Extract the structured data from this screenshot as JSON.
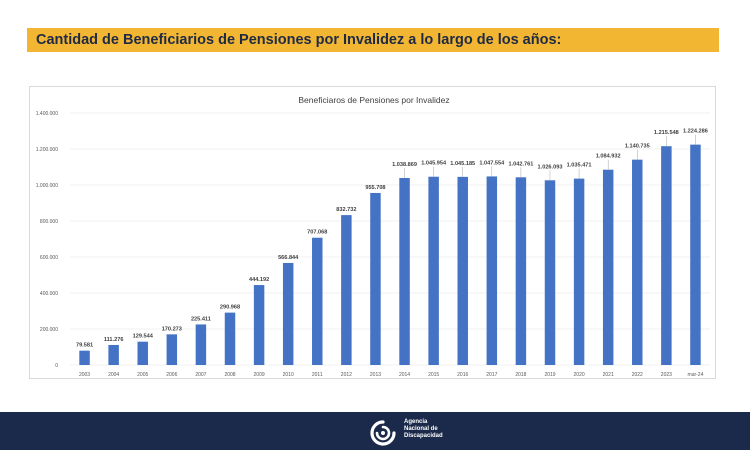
{
  "header": {
    "title": "Cantidad de Beneficiarios de Pensiones por Invalidez a lo largo de los años:"
  },
  "chart_data": {
    "type": "bar",
    "title": "Beneficiaros de Pensiones por Invalidez",
    "xlabel": "",
    "ylabel": "",
    "ylim": [
      0,
      1400000
    ],
    "y_ticks": [
      "0",
      "200.000",
      "400.000",
      "600.000",
      "800.000",
      "1.000.000",
      "1.200.000",
      "1.400.000"
    ],
    "y_tick_values": [
      0,
      200000,
      400000,
      600000,
      800000,
      1000000,
      1200000,
      1400000
    ],
    "categories": [
      "2003",
      "2004",
      "2005",
      "2006",
      "2007",
      "2008",
      "2009",
      "2010",
      "2011",
      "2012",
      "2013",
      "2014",
      "2015",
      "2016",
      "2017",
      "2018",
      "2019",
      "2020",
      "2021",
      "2022",
      "2023",
      "mar-24"
    ],
    "values": [
      79581,
      111276,
      129544,
      170273,
      225411,
      290968,
      444192,
      566844,
      707068,
      832732,
      955708,
      1038869,
      1045954,
      1045185,
      1047554,
      1042761,
      1026093,
      1035471,
      1084932,
      1140735,
      1215548,
      1224286
    ],
    "data_labels": [
      "79.581",
      "111.276",
      "129.544",
      "170.273",
      "225.411",
      "290.968",
      "444.192",
      "566.844",
      "707.068",
      "832.732",
      "955.708",
      "1.038.869",
      "1.045.954",
      "1.045.185",
      "1.047.554",
      "1.042.761",
      "1.026.093",
      "1.035.471",
      "1.084.932",
      "1.140.735",
      "1.215.548",
      "1.224.286"
    ],
    "bar_color": "#4472c4",
    "grid": true,
    "legend": "none"
  },
  "footer": {
    "logo_icon": "agency-logo-icon",
    "logo_lines": [
      "Agencia",
      "Nacional de",
      "Discapacidad"
    ]
  }
}
